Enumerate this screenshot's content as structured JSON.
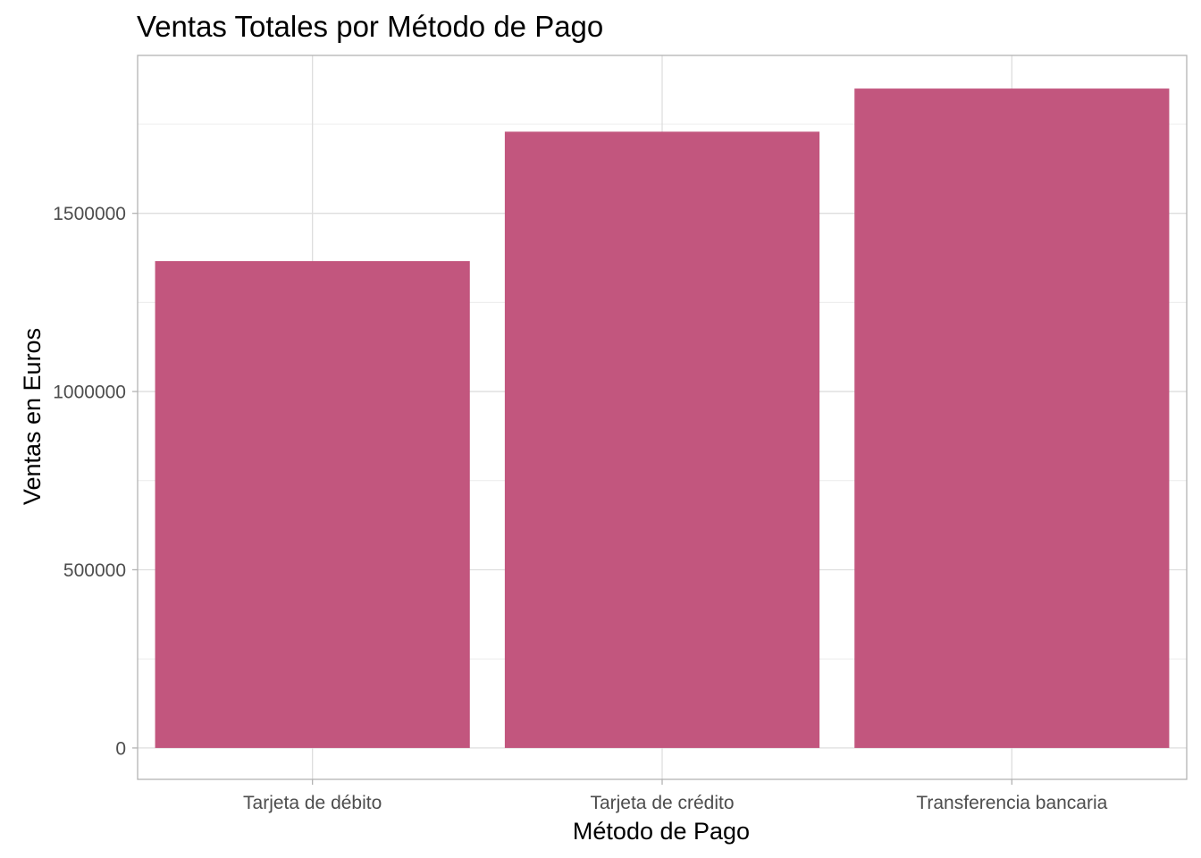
{
  "chart_data": {
    "type": "bar",
    "title": "Ventas Totales por Método de Pago",
    "xlabel": "Método de Pago",
    "ylabel": "Ventas en Euros",
    "categories": [
      "Tarjeta de débito",
      "Tarjeta de crédito",
      "Transferencia bancaria"
    ],
    "values": [
      1366000,
      1729000,
      1850000
    ],
    "ylim": [
      -88000,
      1943000
    ],
    "yticks": [
      0,
      500000,
      1000000,
      1500000
    ],
    "ytick_labels": [
      "0",
      "500000",
      "1000000",
      "1500000"
    ],
    "grid": true,
    "legend": "none",
    "colors": {
      "bar": "#c2567e",
      "panel_border": "#b3b3b3",
      "grid_major": "#dedede",
      "grid_minor": "#ececec",
      "tick_text": "#4d4d4d"
    }
  }
}
